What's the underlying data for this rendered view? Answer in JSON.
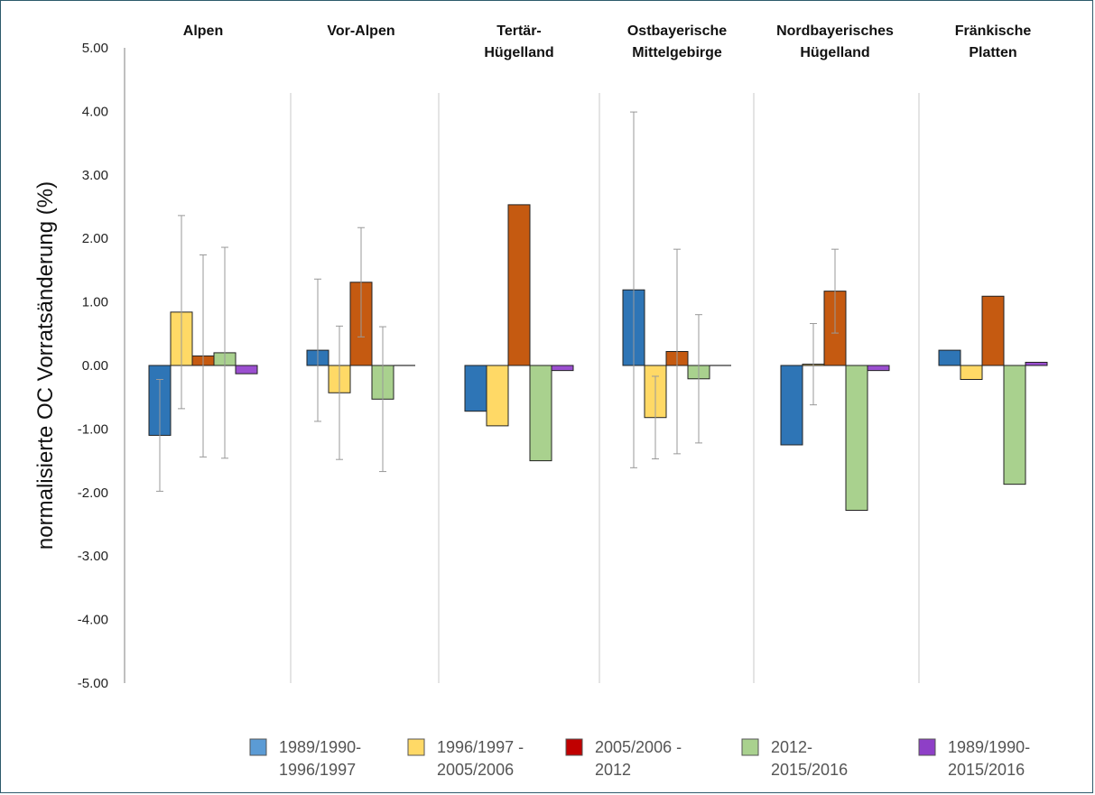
{
  "chart_data": {
    "type": "bar",
    "title": "",
    "xlabel": "",
    "ylabel": "normalisierte OC Vorratsänderung (%)",
    "ylim": [
      -5,
      5
    ],
    "yticks": [
      "5.00",
      "4.00",
      "3.00",
      "2.00",
      "1.00",
      "0.00",
      "-1.00",
      "-2.00",
      "-3.00",
      "-4.00",
      "-5.00"
    ],
    "categories": [
      [
        "Alpen"
      ],
      [
        "Vor-Alpen"
      ],
      [
        "Tertär-",
        "Hügelland"
      ],
      [
        "Ostbayerische",
        "Mittelgebirge"
      ],
      [
        "Nordbayerisches",
        "Hügelland"
      ],
      [
        "Fränkische",
        "Platten"
      ]
    ],
    "series": [
      {
        "name": [
          "1989/1990-",
          "1996/1997"
        ],
        "color": "#2e75b6",
        "values": [
          -1.1,
          0.24,
          -0.72,
          1.19,
          -1.25,
          0.24
        ],
        "error": [
          0.88,
          1.12,
          null,
          2.8,
          null,
          null
        ]
      },
      {
        "name": [
          "1996/1997 -",
          "2005/2006"
        ],
        "color": "#ffd966",
        "values": [
          0.84,
          -0.43,
          -0.95,
          -0.82,
          0.02,
          -0.22
        ],
        "error": [
          1.52,
          1.05,
          null,
          0.65,
          0.64,
          null
        ]
      },
      {
        "name": [
          "2005/2006 -",
          "2012"
        ],
        "color": "#c55a11",
        "values": [
          0.15,
          1.31,
          2.53,
          0.22,
          1.17,
          1.09
        ],
        "error": [
          1.59,
          0.86,
          null,
          1.61,
          0.66,
          null
        ]
      },
      {
        "name": [
          "2012-",
          "2015/2016"
        ],
        "color": "#a9d18e",
        "values": [
          0.2,
          -0.53,
          -1.5,
          -0.21,
          -2.28,
          -1.87
        ],
        "error": [
          1.66,
          1.14,
          null,
          1.01,
          null,
          null
        ]
      },
      {
        "name": [
          "1989/1990-",
          "2015/2016"
        ],
        "color": "#9b4fd0",
        "values": [
          -0.13,
          0.0,
          -0.08,
          0.0,
          -0.08,
          0.05
        ],
        "error": [
          null,
          null,
          null,
          null,
          null,
          null
        ]
      }
    ],
    "legend_position": "bottom",
    "legend_colors": [
      "#5b9bd5",
      "#ffd966",
      "#c00000",
      "#a9d18e",
      "#8e3fc7"
    ],
    "grid": false
  }
}
